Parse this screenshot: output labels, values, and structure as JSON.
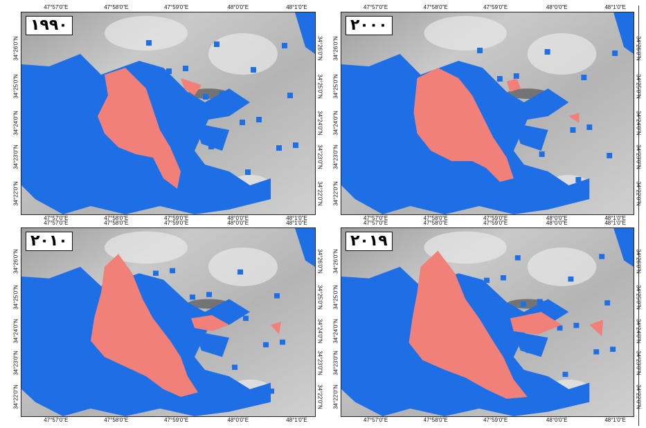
{
  "panels": [
    {
      "year": "۱۹۹۰"
    },
    {
      "year": "۲۰۰۰"
    },
    {
      "year": "۲۰۱۰"
    },
    {
      "year": "۲۰۱۹"
    }
  ],
  "longitude_ticks": [
    "47°57'0\"E",
    "47°58'0\"E",
    "47°59'0\"E",
    "48°0'0\"E",
    "48°1'0\"E"
  ],
  "latitude_ticks": [
    "34°26'0\"N",
    "34°25'0\"N",
    "34°24'0\"N",
    "34°23'0\"N",
    "34°22'0\"N"
  ],
  "colors": {
    "water_blue": "#1e6fe6",
    "urban_salmon": "#f08078",
    "relief_gray": "#b8b8b8"
  }
}
